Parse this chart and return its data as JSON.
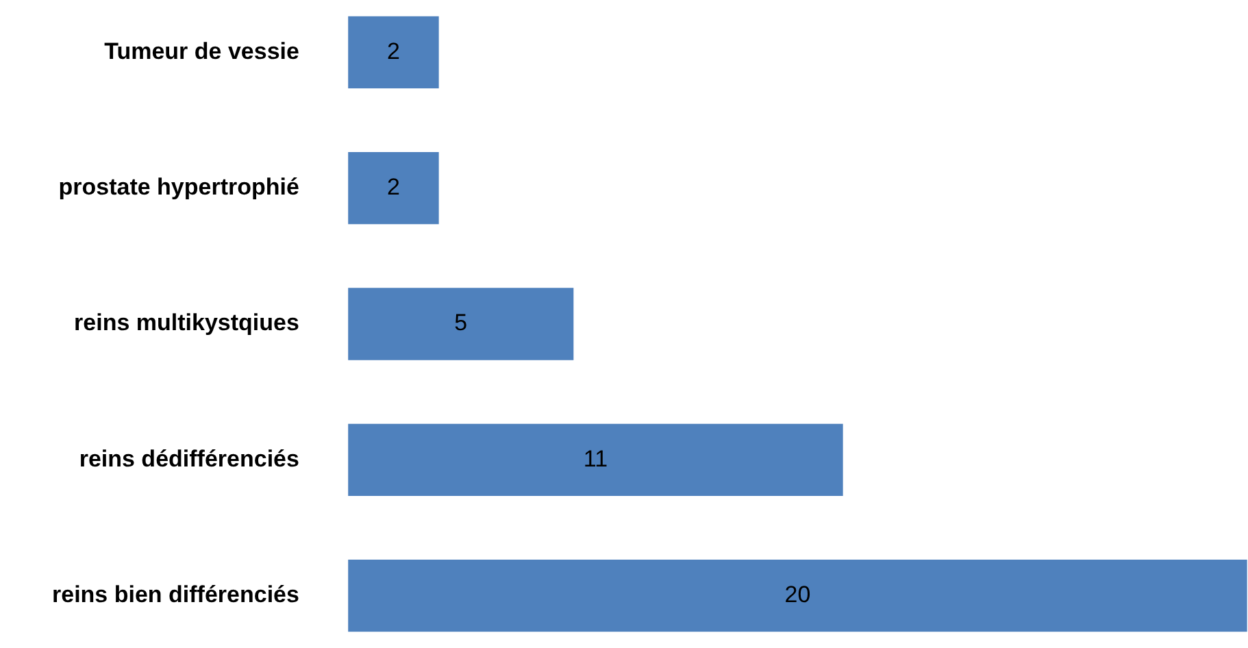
{
  "chart_data": {
    "type": "bar",
    "orientation": "horizontal",
    "categories": [
      "Tumeur de vessie",
      "prostate hypertrophié",
      "reins multikystqiues",
      "reins dédifférenciés",
      "reins bien différenciés"
    ],
    "values": [
      2,
      2,
      5,
      11,
      20
    ],
    "color": "#4f81bd",
    "xlim": [
      0,
      20
    ],
    "data_labels": true,
    "legend": false,
    "tick_labels": "y"
  }
}
